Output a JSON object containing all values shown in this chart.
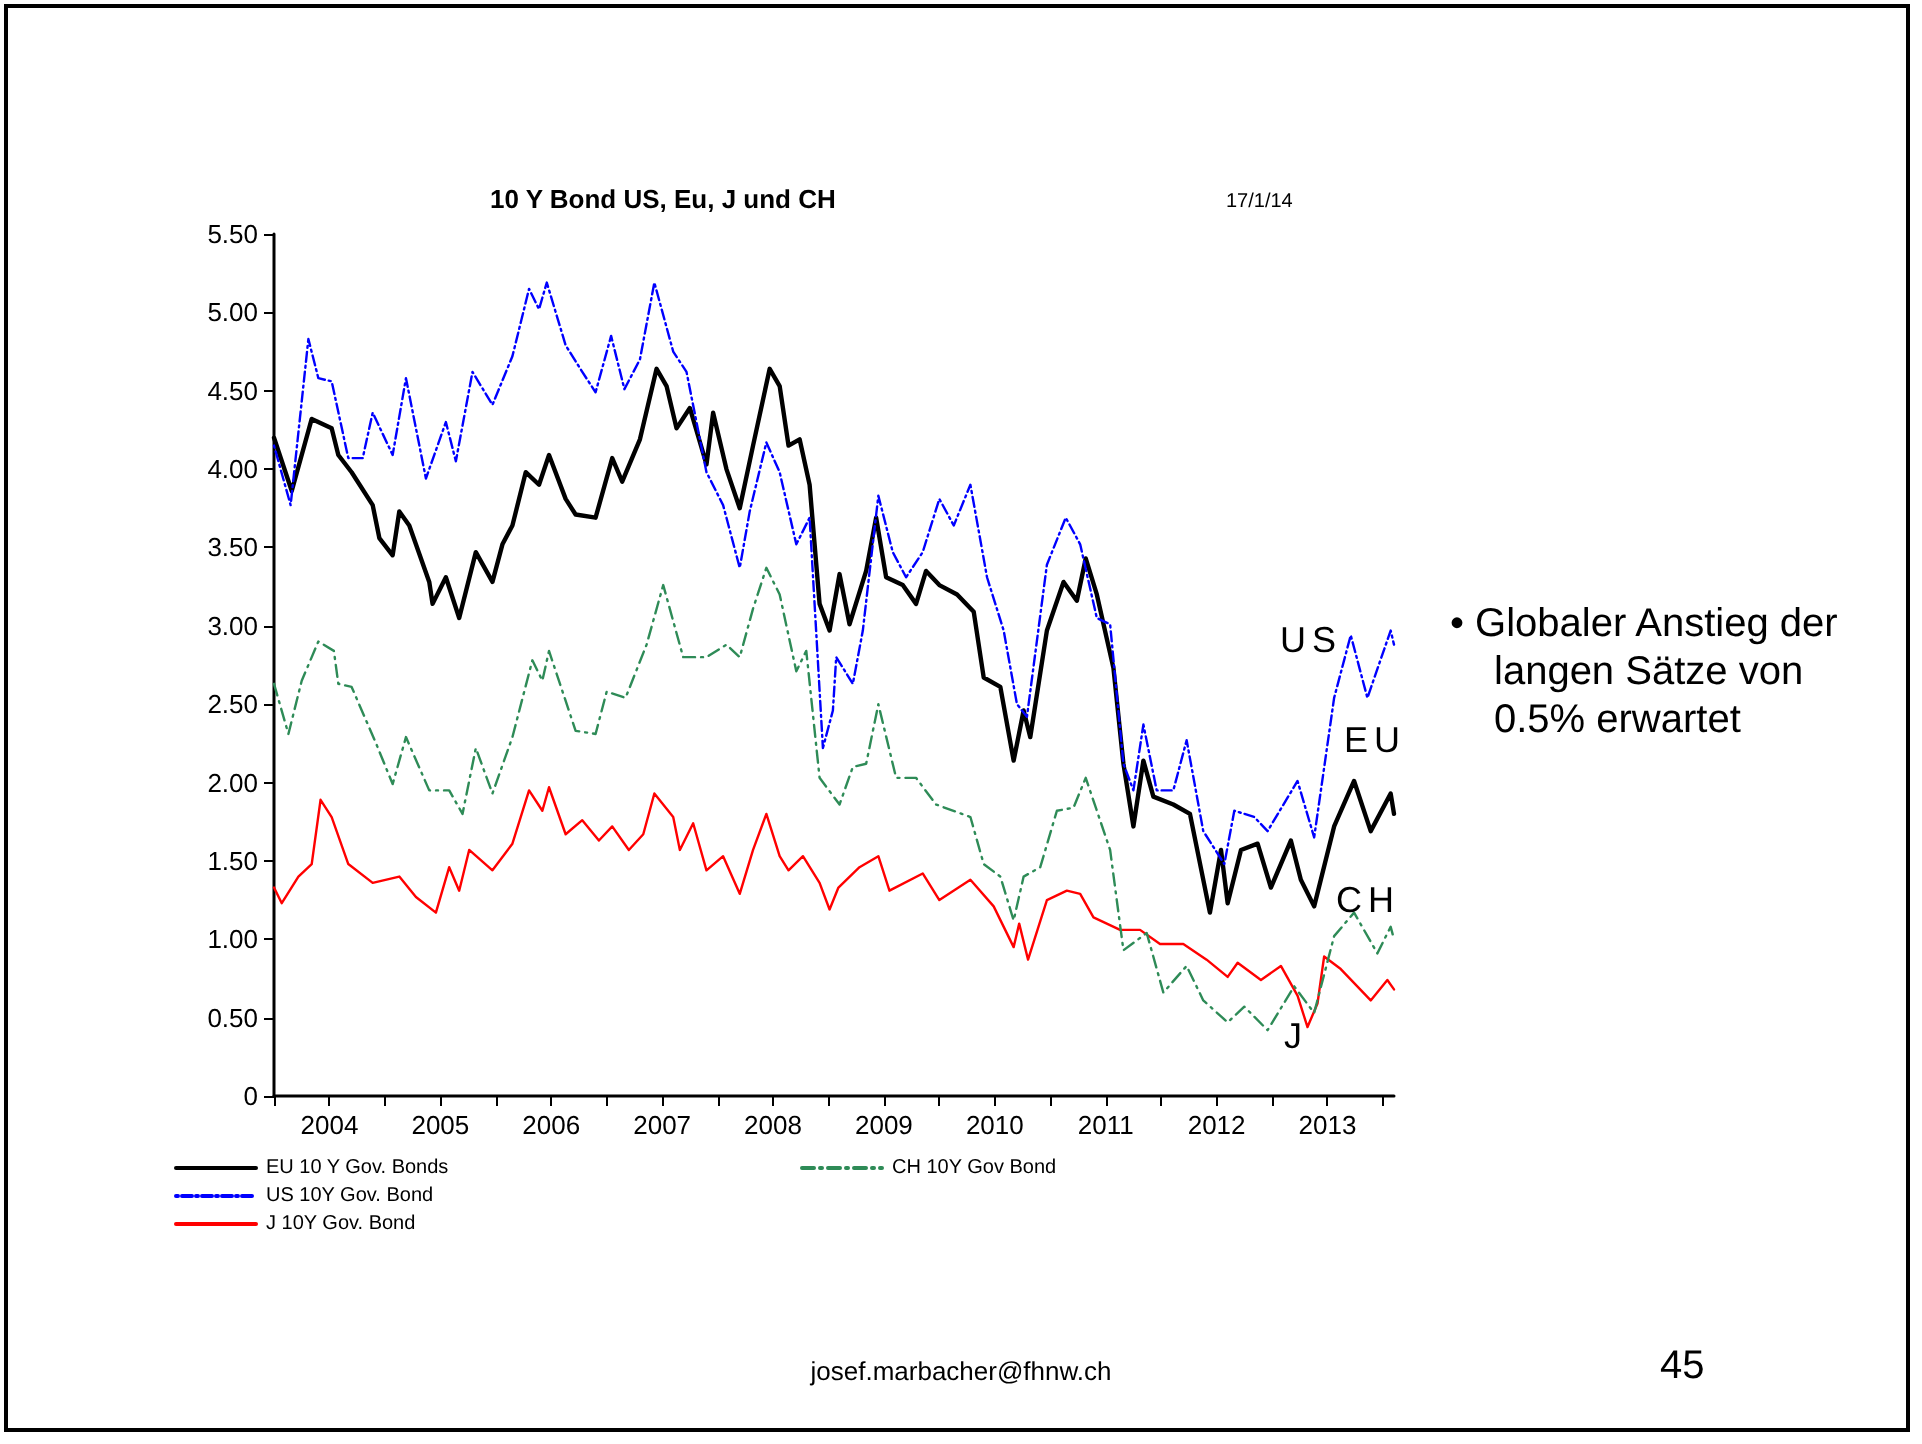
{
  "chart_data": {
    "type": "line",
    "title": "10 Y Bond US, Eu, J und CH",
    "subtitle": "17/1/14",
    "xlim": [
      2004,
      2014.1
    ],
    "xticks": [
      {
        "value": 2004,
        "label": null
      },
      {
        "value": 2004.5,
        "label": "2004"
      },
      {
        "value": 2005,
        "label": null
      },
      {
        "value": 2005.5,
        "label": "2005"
      },
      {
        "value": 2006,
        "label": null
      },
      {
        "value": 2006.5,
        "label": "2006"
      },
      {
        "value": 2007,
        "label": null
      },
      {
        "value": 2007.5,
        "label": "2007"
      },
      {
        "value": 2008,
        "label": null
      },
      {
        "value": 2008.5,
        "label": "2008"
      },
      {
        "value": 2009,
        "label": null
      },
      {
        "value": 2009.5,
        "label": "2009"
      },
      {
        "value": 2010,
        "label": null
      },
      {
        "value": 2010.5,
        "label": "2010"
      },
      {
        "value": 2011,
        "label": null
      },
      {
        "value": 2011.5,
        "label": "2011"
      },
      {
        "value": 2012,
        "label": null
      },
      {
        "value": 2012.5,
        "label": "2012"
      },
      {
        "value": 2013,
        "label": null
      },
      {
        "value": 2013.5,
        "label": "2013"
      },
      {
        "value": 2014,
        "label": null
      }
    ],
    "ylim": [
      0,
      5.5
    ],
    "yticks": [
      0,
      {
        "value": 0.5,
        "label": "0.50"
      },
      {
        "value": 1,
        "label": "1.00"
      },
      {
        "value": 1.5,
        "label": "1.50"
      },
      {
        "value": 2,
        "label": "2.00"
      },
      {
        "value": 2.5,
        "label": "2.50"
      },
      {
        "value": 3,
        "label": "3.00"
      },
      {
        "value": 3.5,
        "label": "3.50"
      },
      {
        "value": 4,
        "label": "4.00"
      },
      {
        "value": 4.5,
        "label": "4.50"
      },
      {
        "value": 5,
        "label": "5.00"
      },
      {
        "value": 5.5,
        "label": "5.50"
      }
    ],
    "grid": false,
    "legend": "bottom",
    "marker": "none",
    "series": [
      {
        "name": "EU 10 Y Gov. Bonds",
        "color": "#000000",
        "line_style": "solid",
        "x": [
          2004.0,
          2004.16,
          2004.34,
          2004.52,
          2004.58,
          2004.7,
          2004.89,
          2004.95,
          2005.07,
          2005.13,
          2005.22,
          2005.4,
          2005.43,
          2005.55,
          2005.67,
          2005.82,
          2005.97,
          2006.06,
          2006.15,
          2006.27,
          2006.39,
          2006.48,
          2006.63,
          2006.72,
          2006.9,
          2007.05,
          2007.14,
          2007.3,
          2007.45,
          2007.54,
          2007.63,
          2007.75,
          2007.9,
          2007.96,
          2008.08,
          2008.2,
          2008.32,
          2008.47,
          2008.56,
          2008.64,
          2008.74,
          2008.83,
          2008.92,
          2009.01,
          2009.1,
          2009.19,
          2009.34,
          2009.43,
          2009.52,
          2009.67,
          2009.79,
          2009.88,
          2010.0,
          2010.16,
          2010.31,
          2010.4,
          2010.55,
          2010.67,
          2010.76,
          2010.82,
          2010.97,
          2011.12,
          2011.24,
          2011.32,
          2011.42,
          2011.57,
          2011.66,
          2011.75,
          2011.84,
          2011.93,
          2012.11,
          2012.26,
          2012.44,
          2012.54,
          2012.6,
          2012.72,
          2012.87,
          2012.99,
          2013.17,
          2013.26,
          2013.38,
          2013.56,
          2013.74,
          2013.89,
          2014.07,
          2014.1
        ],
        "values": [
          4.2,
          3.86,
          4.32,
          4.26,
          4.09,
          3.98,
          3.77,
          3.56,
          3.45,
          3.73,
          3.64,
          3.28,
          3.14,
          3.31,
          3.05,
          3.47,
          3.28,
          3.52,
          3.64,
          3.98,
          3.9,
          4.09,
          3.81,
          3.71,
          3.69,
          4.07,
          3.92,
          4.19,
          4.64,
          4.53,
          4.26,
          4.39,
          4.03,
          4.36,
          4.0,
          3.75,
          4.15,
          4.64,
          4.53,
          4.15,
          4.19,
          3.9,
          3.14,
          2.97,
          3.33,
          3.01,
          3.35,
          3.69,
          3.31,
          3.26,
          3.14,
          3.35,
          3.26,
          3.2,
          3.09,
          2.67,
          2.61,
          2.14,
          2.46,
          2.29,
          2.97,
          3.28,
          3.16,
          3.43,
          3.2,
          2.73,
          2.12,
          1.72,
          2.14,
          1.91,
          1.86,
          1.8,
          1.17,
          1.57,
          1.23,
          1.57,
          1.61,
          1.33,
          1.63,
          1.38,
          1.21,
          1.72,
          2.01,
          1.69,
          1.93,
          1.8
        ]
      },
      {
        "name": "US 10Y Gov. Bond",
        "color": "#0000ff",
        "line_style": "dotted",
        "x": [
          2004.0,
          2004.15,
          2004.31,
          2004.4,
          2004.52,
          2004.67,
          2004.8,
          2004.89,
          2005.07,
          2005.19,
          2005.37,
          2005.55,
          2005.64,
          2005.79,
          2005.97,
          2006.15,
          2006.3,
          2006.39,
          2006.46,
          2006.63,
          2006.78,
          2006.9,
          2007.04,
          2007.16,
          2007.3,
          2007.43,
          2007.6,
          2007.72,
          2007.9,
          2008.05,
          2008.2,
          2008.29,
          2008.44,
          2008.56,
          2008.71,
          2008.83,
          2008.95,
          2009.04,
          2009.07,
          2009.22,
          2009.31,
          2009.45,
          2009.58,
          2009.7,
          2009.85,
          2010.0,
          2010.13,
          2010.28,
          2010.43,
          2010.58,
          2010.7,
          2010.79,
          2010.97,
          2011.14,
          2011.27,
          2011.42,
          2011.54,
          2011.66,
          2011.75,
          2011.84,
          2011.96,
          2012.11,
          2012.23,
          2012.38,
          2012.57,
          2012.66,
          2012.84,
          2012.96,
          2013.23,
          2013.38,
          2013.56,
          2013.71,
          2013.86,
          2014.07,
          2014.1
        ],
        "values": [
          4.15,
          3.77,
          4.83,
          4.58,
          4.56,
          4.07,
          4.07,
          4.36,
          4.09,
          4.58,
          3.94,
          4.3,
          4.05,
          4.62,
          4.41,
          4.72,
          5.15,
          5.02,
          5.19,
          4.79,
          4.62,
          4.49,
          4.85,
          4.51,
          4.7,
          5.19,
          4.75,
          4.62,
          3.98,
          3.77,
          3.37,
          3.73,
          4.17,
          3.98,
          3.52,
          3.69,
          2.22,
          2.46,
          2.8,
          2.63,
          2.97,
          3.83,
          3.47,
          3.31,
          3.47,
          3.81,
          3.64,
          3.9,
          3.31,
          2.97,
          2.5,
          2.42,
          3.39,
          3.69,
          3.52,
          3.05,
          3.01,
          2.12,
          1.95,
          2.37,
          1.95,
          1.95,
          2.27,
          1.69,
          1.48,
          1.82,
          1.78,
          1.69,
          2.01,
          1.65,
          2.54,
          2.94,
          2.54,
          2.97,
          2.88
        ]
      },
      {
        "name": "J 10Y Gov. Bond",
        "color": "#ff0000",
        "line_style": "solid",
        "x": [
          2004.0,
          2004.07,
          2004.22,
          2004.34,
          2004.42,
          2004.52,
          2004.67,
          2004.89,
          2005.13,
          2005.28,
          2005.46,
          2005.58,
          2005.67,
          2005.76,
          2005.97,
          2006.15,
          2006.3,
          2006.42,
          2006.48,
          2006.63,
          2006.78,
          2006.93,
          2007.05,
          2007.2,
          2007.33,
          2007.43,
          2007.6,
          2007.66,
          2007.78,
          2007.9,
          2008.05,
          2008.2,
          2008.32,
          2008.44,
          2008.56,
          2008.64,
          2008.77,
          2008.92,
          2009.01,
          2009.09,
          2009.28,
          2009.45,
          2009.55,
          2009.85,
          2010.0,
          2010.28,
          2010.49,
          2010.67,
          2010.72,
          2010.8,
          2010.97,
          2011.15,
          2011.27,
          2011.39,
          2011.63,
          2011.81,
          2011.99,
          2012.2,
          2012.41,
          2012.6,
          2012.69,
          2012.9,
          2013.08,
          2013.23,
          2013.32,
          2013.41,
          2013.47,
          2013.62,
          2013.89,
          2014.04,
          2014.1
        ],
        "values": [
          1.33,
          1.23,
          1.4,
          1.48,
          1.89,
          1.78,
          1.48,
          1.36,
          1.4,
          1.27,
          1.17,
          1.46,
          1.31,
          1.57,
          1.44,
          1.61,
          1.95,
          1.82,
          1.97,
          1.67,
          1.76,
          1.63,
          1.72,
          1.57,
          1.67,
          1.93,
          1.78,
          1.57,
          1.74,
          1.44,
          1.53,
          1.29,
          1.57,
          1.8,
          1.53,
          1.44,
          1.53,
          1.36,
          1.19,
          1.33,
          1.46,
          1.53,
          1.31,
          1.42,
          1.25,
          1.38,
          1.21,
          0.95,
          1.1,
          0.87,
          1.25,
          1.31,
          1.29,
          1.14,
          1.06,
          1.06,
          0.97,
          0.97,
          0.87,
          0.76,
          0.85,
          0.74,
          0.83,
          0.64,
          0.44,
          0.59,
          0.89,
          0.81,
          0.61,
          0.74,
          0.68
        ]
      },
      {
        "name": "CH 10Y Gov Bond",
        "color": "#2e8b57",
        "line_style": "dashed",
        "x": [
          2004.0,
          2004.13,
          2004.25,
          2004.4,
          2004.54,
          2004.58,
          2004.7,
          2004.92,
          2005.07,
          2005.19,
          2005.4,
          2005.58,
          2005.7,
          2005.82,
          2005.97,
          2006.15,
          2006.33,
          2006.42,
          2006.48,
          2006.72,
          2006.9,
          2007.0,
          2007.17,
          2007.36,
          2007.51,
          2007.69,
          2007.9,
          2008.08,
          2008.2,
          2008.32,
          2008.44,
          2008.56,
          2008.71,
          2008.8,
          2008.92,
          2009.1,
          2009.22,
          2009.34,
          2009.45,
          2009.61,
          2009.79,
          2009.97,
          2010.28,
          2010.4,
          2010.55,
          2010.67,
          2010.76,
          2010.91,
          2011.06,
          2011.21,
          2011.32,
          2011.54,
          2011.66,
          2011.87,
          2012.02,
          2012.23,
          2012.38,
          2012.6,
          2012.75,
          2012.96,
          2013.2,
          2013.38,
          2013.56,
          2013.74,
          2013.95,
          2014.07,
          2014.1
        ],
        "values": [
          2.63,
          2.31,
          2.65,
          2.9,
          2.84,
          2.63,
          2.61,
          2.25,
          1.99,
          2.29,
          1.95,
          1.95,
          1.8,
          2.22,
          1.93,
          2.29,
          2.78,
          2.65,
          2.84,
          2.33,
          2.31,
          2.58,
          2.54,
          2.88,
          3.26,
          2.8,
          2.8,
          2.88,
          2.8,
          3.11,
          3.37,
          3.2,
          2.71,
          2.84,
          2.03,
          1.86,
          2.1,
          2.12,
          2.5,
          2.03,
          2.03,
          1.86,
          1.78,
          1.48,
          1.4,
          1.12,
          1.4,
          1.46,
          1.82,
          1.84,
          2.03,
          1.57,
          0.93,
          1.04,
          0.66,
          0.83,
          0.61,
          0.47,
          0.57,
          0.42,
          0.7,
          0.53,
          1.02,
          1.17,
          0.91,
          1.08,
          1.0
        ]
      }
    ],
    "annotations": [
      "US",
      "EU",
      "CH",
      "J",
      "• Globaler Anstieg der langen Sätze von 0.5% erwartet",
      "josef.marbacher@fhnw.ch",
      "45"
    ]
  }
}
